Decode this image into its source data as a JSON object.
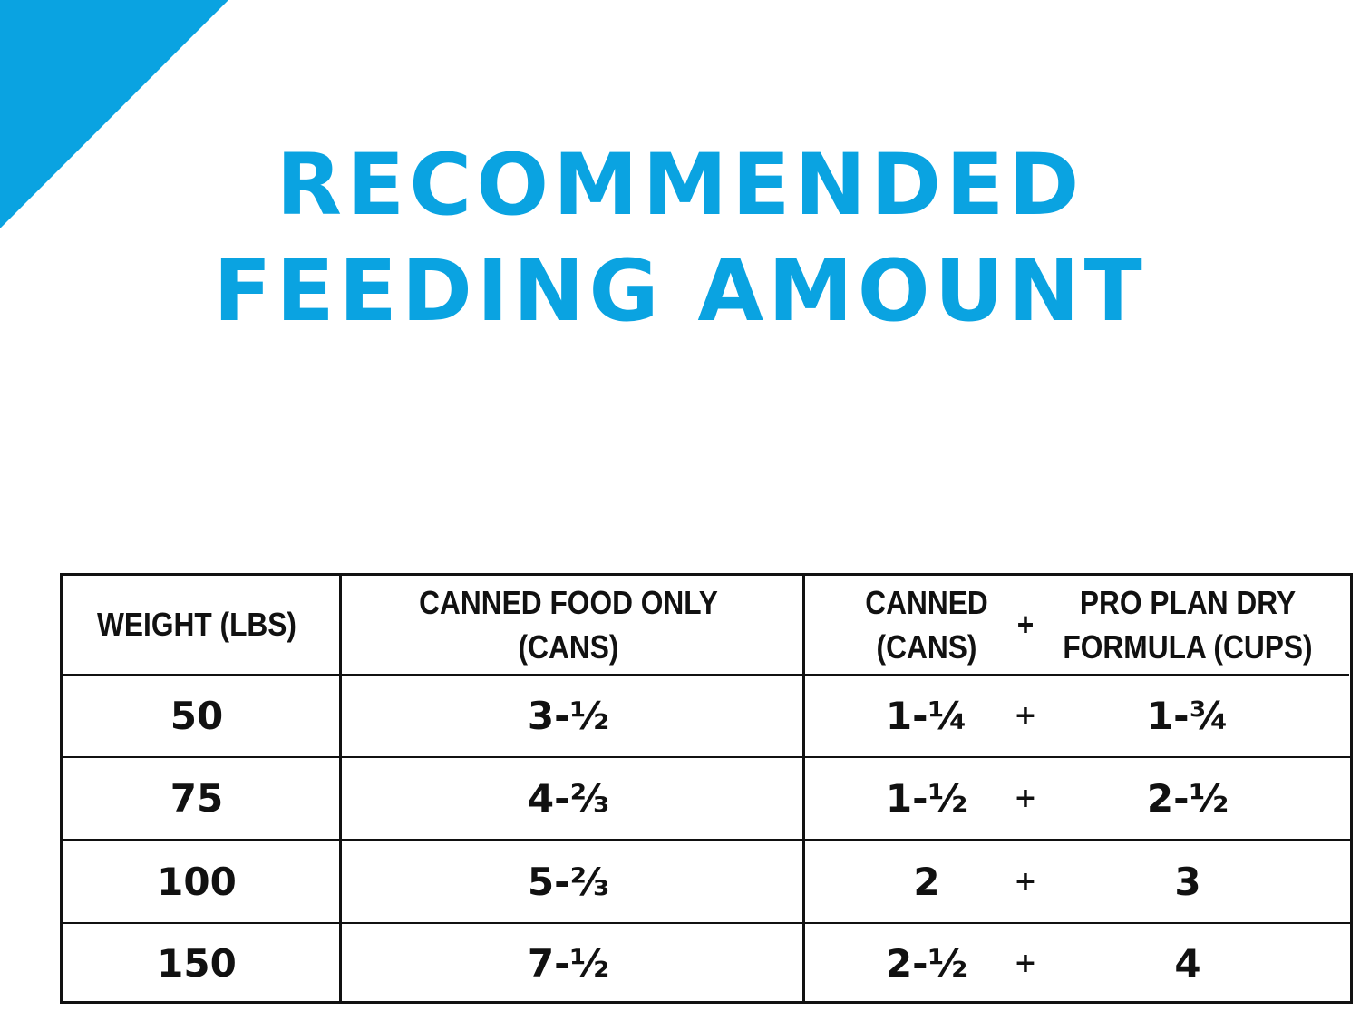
{
  "header": {
    "title_lines": [
      "RECOMMENDED",
      "FEEDING AMOUNT"
    ]
  },
  "table": {
    "header": [
      {
        "lines": [
          "WEIGHT (LBS)"
        ]
      },
      {
        "lines": [
          "CANNED FOOD ONLY",
          "(CANS)"
        ]
      },
      {
        "lines": [
          "CANNED",
          "(CANS)"
        ]
      },
      {
        "lines": [
          "+"
        ]
      },
      {
        "lines": [
          "PRO PLAN DRY",
          "FORMULA (CUPS)"
        ]
      }
    ],
    "rows": [
      [
        "50",
        "3-½",
        "1-¼",
        "+",
        "1-¾"
      ],
      [
        "75",
        "4-⅔",
        "1-½",
        "+",
        "2-½"
      ],
      [
        "100",
        "5-⅔",
        "2",
        "+",
        "3"
      ],
      [
        "150",
        "7-½",
        "2-½",
        "+",
        "4"
      ]
    ]
  }
}
